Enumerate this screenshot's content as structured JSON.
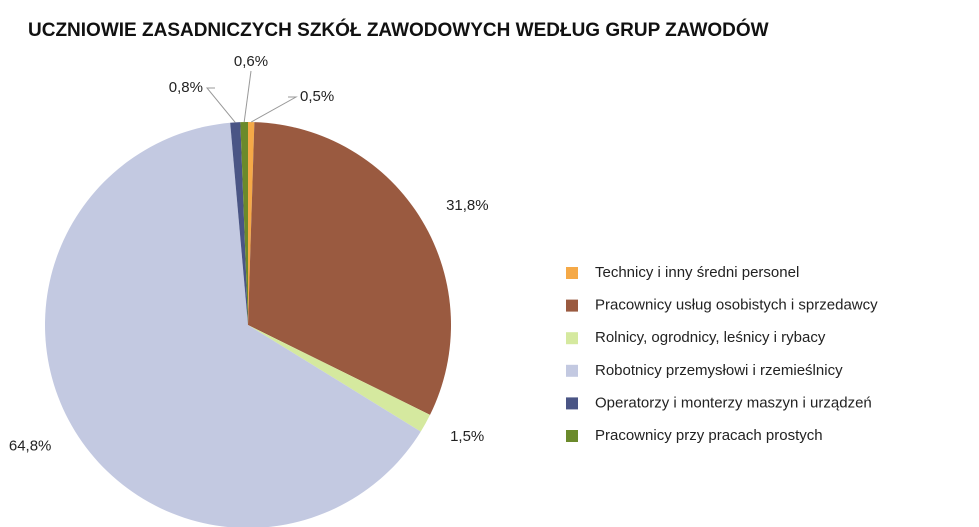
{
  "chart_data": {
    "type": "pie",
    "title": "UCZNIOWIE ZASADNICZYCH SZKÓŁ ZAWODOWYCH WEDŁUG GRUP ZAWODÓW",
    "categories": [
      "Technicy i inny średni personel",
      "Pracownicy usług osobistych i sprzedawcy",
      "Rolnicy, ogrodnicy, leśnicy i rybacy",
      "Robotnicy przemysłowi i rzemieślnicy",
      "Operatorzy i monterzy maszyn i urządzeń",
      "Pracownicy przy pracach prostych"
    ],
    "values": [
      0.5,
      31.8,
      1.5,
      64.8,
      0.8,
      0.6
    ],
    "value_labels": [
      "0,5%",
      "31,8%",
      "1,5%",
      "64,8%",
      "0,8%",
      "0,6%"
    ],
    "colors": [
      "#f5a947",
      "#9a5a40",
      "#d5e99f",
      "#c3c9e1",
      "#4a5585",
      "#6b8a2b"
    ],
    "legend": "right"
  }
}
